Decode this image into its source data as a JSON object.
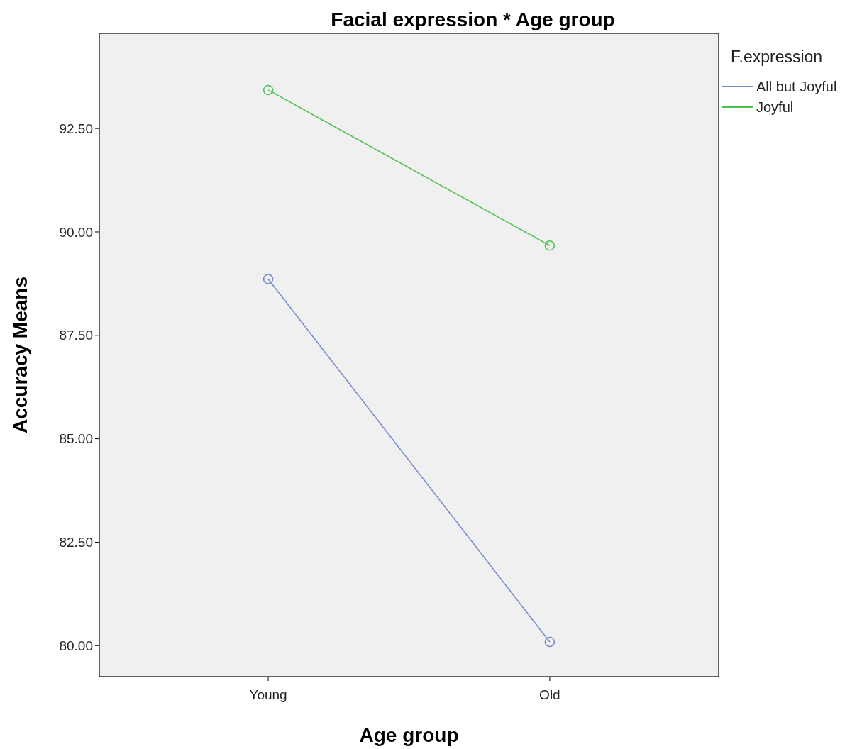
{
  "chart_data": {
    "type": "line",
    "title": "Facial expression * Age group",
    "xlabel": "Age group",
    "ylabel": "Accuracy Means",
    "legend_title": "F.expression",
    "categories": [
      "Young",
      "Old"
    ],
    "series": [
      {
        "name": "All but Joyful",
        "color": "#7587cc",
        "values": [
          88.86,
          80.09
        ]
      },
      {
        "name": "Joyful",
        "color": "#4cc04c",
        "values": [
          93.43,
          89.67
        ]
      }
    ],
    "ylim": [
      79.25,
      94.8
    ],
    "yticks": [
      {
        "value": 80,
        "label": "80.00"
      },
      {
        "value": 82.5,
        "label": "82.50"
      },
      {
        "value": 85,
        "label": "85.00"
      },
      {
        "value": 87.5,
        "label": "87.50"
      },
      {
        "value": 90,
        "label": "90.00"
      },
      {
        "value": 92.5,
        "label": "92.50"
      }
    ],
    "grid": false,
    "legend": "top right",
    "marker": "circle",
    "line_style": "solid"
  }
}
